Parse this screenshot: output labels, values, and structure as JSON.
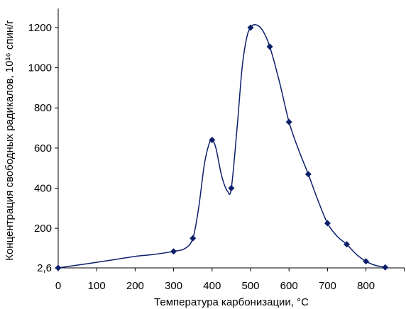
{
  "chart_data": {
    "type": "scatter",
    "style": "smooth-line-with-markers",
    "xlabel": "Температура карбонизации, ",
    "xlabel_unit": "°С",
    "ylabel": "Концентрация свободных радикалов, ",
    "ylabel_unit": "10¹⁶ спин/г",
    "x_ticks": [
      0,
      100,
      200,
      300,
      400,
      500,
      600,
      700,
      800
    ],
    "y_ticks": [
      2.6,
      200,
      400,
      600,
      800,
      1000,
      1200
    ],
    "y_tick_labels": [
      "2,6",
      "200",
      "400",
      "600",
      "800",
      "1000",
      "1200"
    ],
    "xlim": [
      0,
      900
    ],
    "ylim": [
      2.6,
      1250
    ],
    "grid": false,
    "series": [
      {
        "color": "#0b1f6b",
        "marker": "diamond",
        "points": [
          {
            "x": 0,
            "y": 2.6
          },
          {
            "x": 300,
            "y": 85
          },
          {
            "x": 350,
            "y": 150
          },
          {
            "x": 400,
            "y": 640
          },
          {
            "x": 450,
            "y": 400
          },
          {
            "x": 500,
            "y": 1200
          },
          {
            "x": 550,
            "y": 1105
          },
          {
            "x": 600,
            "y": 730
          },
          {
            "x": 650,
            "y": 470
          },
          {
            "x": 700,
            "y": 225
          },
          {
            "x": 750,
            "y": 120
          },
          {
            "x": 800,
            "y": 35
          },
          {
            "x": 850,
            "y": 5
          }
        ]
      }
    ],
    "curve_shape_points": [
      {
        "x": 0,
        "y": 2.6
      },
      {
        "x": 80,
        "y": 25
      },
      {
        "x": 150,
        "y": 45
      },
      {
        "x": 200,
        "y": 60
      },
      {
        "x": 250,
        "y": 70
      },
      {
        "x": 300,
        "y": 85
      },
      {
        "x": 330,
        "y": 100
      },
      {
        "x": 350,
        "y": 150
      },
      {
        "x": 365,
        "y": 300
      },
      {
        "x": 380,
        "y": 520
      },
      {
        "x": 392,
        "y": 620
      },
      {
        "x": 400,
        "y": 640
      },
      {
        "x": 410,
        "y": 600
      },
      {
        "x": 425,
        "y": 460
      },
      {
        "x": 440,
        "y": 385
      },
      {
        "x": 450,
        "y": 400
      },
      {
        "x": 465,
        "y": 700
      },
      {
        "x": 478,
        "y": 1000
      },
      {
        "x": 490,
        "y": 1150
      },
      {
        "x": 500,
        "y": 1200
      },
      {
        "x": 512,
        "y": 1215
      },
      {
        "x": 530,
        "y": 1190
      },
      {
        "x": 550,
        "y": 1105
      },
      {
        "x": 575,
        "y": 930
      },
      {
        "x": 600,
        "y": 730
      },
      {
        "x": 625,
        "y": 590
      },
      {
        "x": 650,
        "y": 470
      },
      {
        "x": 675,
        "y": 340
      },
      {
        "x": 700,
        "y": 225
      },
      {
        "x": 725,
        "y": 160
      },
      {
        "x": 750,
        "y": 120
      },
      {
        "x": 775,
        "y": 70
      },
      {
        "x": 800,
        "y": 35
      },
      {
        "x": 825,
        "y": 15
      },
      {
        "x": 850,
        "y": 5
      }
    ]
  }
}
